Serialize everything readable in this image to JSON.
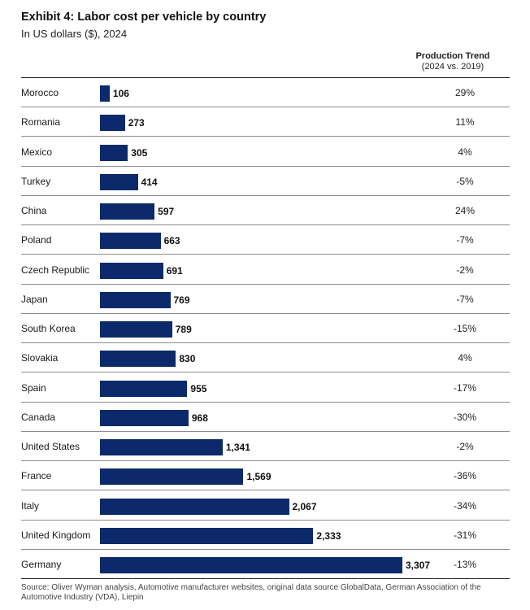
{
  "chart_data": {
    "type": "bar",
    "orientation": "horizontal",
    "title": "Exhibit 4: Labor cost per vehicle by country",
    "subtitle": "In US dollars ($), 2024",
    "trend_header": {
      "line1": "Production Trend",
      "line2": "(2024 vs. 2019)"
    },
    "categories": [
      "Morocco",
      "Romania",
      "Mexico",
      "Turkey",
      "China",
      "Poland",
      "Czech Republic",
      "Japan",
      "South Korea",
      "Slovakia",
      "Spain",
      "Canada",
      "United States",
      "France",
      "Italy",
      "United Kingdom",
      "Germany"
    ],
    "values": [
      106,
      273,
      305,
      414,
      597,
      663,
      691,
      769,
      789,
      830,
      955,
      968,
      1341,
      1569,
      2067,
      2333,
      3307
    ],
    "value_labels": [
      "106",
      "273",
      "305",
      "414",
      "597",
      "663",
      "691",
      "769",
      "789",
      "830",
      "955",
      "968",
      "1,341",
      "1,569",
      "2,067",
      "2,333",
      "3,307"
    ],
    "production_trend": [
      "29%",
      "11%",
      "4%",
      "-5%",
      "24%",
      "-7%",
      "-2%",
      "-7%",
      "-15%",
      "4%",
      "-17%",
      "-30%",
      "-2%",
      "-36%",
      "-34%",
      "-31%",
      "-13%"
    ],
    "xlim": [
      0,
      3307
    ],
    "colors": {
      "bar": "#0c2a6b"
    },
    "source": "Source: Oliver Wyman analysis, Automotive manufacturer websites, original data source GlobalData, German Association of the Automotive Industry (VDA), Liepin"
  }
}
